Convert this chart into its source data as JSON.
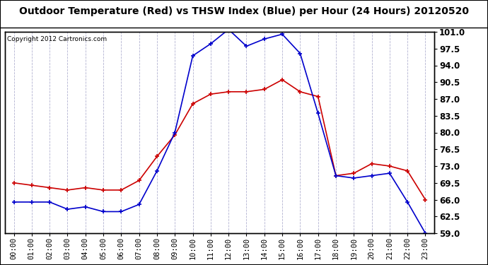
{
  "title": "Outdoor Temperature (Red) vs THSW Index (Blue) per Hour (24 Hours) 20120520",
  "copyright": "Copyright 2012 Cartronics.com",
  "hours": [
    "00:00",
    "01:00",
    "02:00",
    "03:00",
    "04:00",
    "05:00",
    "06:00",
    "07:00",
    "08:00",
    "09:00",
    "10:00",
    "11:00",
    "12:00",
    "13:00",
    "14:00",
    "15:00",
    "16:00",
    "17:00",
    "18:00",
    "19:00",
    "20:00",
    "21:00",
    "22:00",
    "23:00"
  ],
  "red_temp": [
    69.5,
    69.0,
    68.5,
    68.0,
    68.5,
    68.0,
    68.0,
    70.0,
    75.0,
    79.5,
    86.0,
    88.0,
    88.5,
    88.5,
    89.0,
    91.0,
    88.5,
    87.5,
    71.0,
    71.5,
    73.5,
    73.0,
    72.0,
    66.0
  ],
  "blue_thsw": [
    65.5,
    65.5,
    65.5,
    64.0,
    64.5,
    63.5,
    63.5,
    65.0,
    72.0,
    80.0,
    96.0,
    98.5,
    101.5,
    98.0,
    99.5,
    100.5,
    96.5,
    84.0,
    71.0,
    70.5,
    71.0,
    71.5,
    65.5,
    59.0
  ],
  "ylim": [
    59.0,
    101.0
  ],
  "yticks": [
    59.0,
    62.5,
    66.0,
    69.5,
    73.0,
    76.5,
    80.0,
    83.5,
    87.0,
    90.5,
    94.0,
    97.5,
    101.0
  ],
  "red_color": "#cc0000",
  "blue_color": "#0000cc",
  "background_color": "#ffffff",
  "grid_color": "#aaaacc",
  "title_fontsize": 10,
  "copyright_fontsize": 6.5,
  "tick_fontsize": 7.5,
  "ytick_fontsize": 8.5
}
